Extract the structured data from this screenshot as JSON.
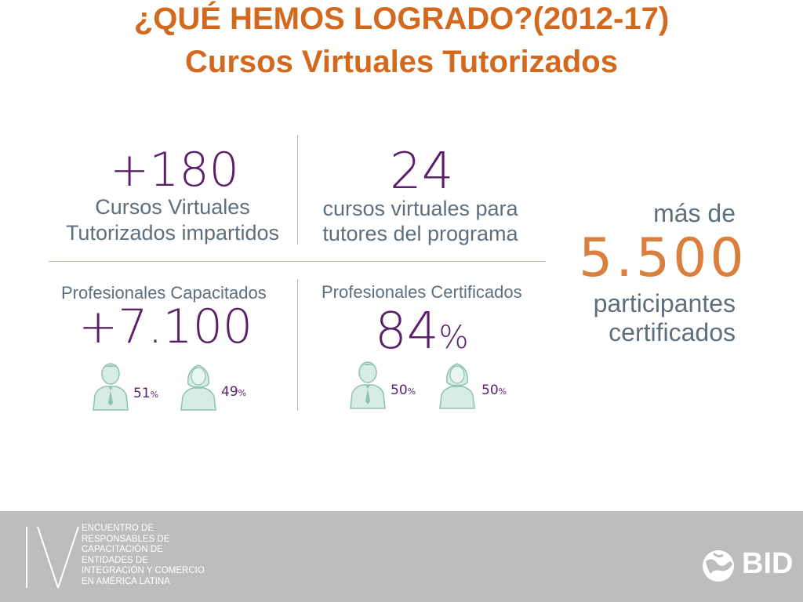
{
  "title": {
    "line1": "¿QUÉ HEMOS LOGRADO?(2012-17)",
    "line2": "Cursos Virtuales Tutorizados"
  },
  "stats": {
    "courses": {
      "value": "+180",
      "label_line1": "Cursos Virtuales",
      "label_line2": "Tutorizados impartidos"
    },
    "tutor_courses": {
      "value": "24",
      "label_line1": "cursos virtuales para",
      "label_line2": "tutores del programa"
    },
    "trained": {
      "label": "Profesionales Capacitados",
      "value": "+7.100",
      "male_pct": "51",
      "female_pct": "49",
      "pct_sign": "%"
    },
    "certified": {
      "label": "Profesionales Certificados",
      "value": "84",
      "pct_sign": "%",
      "male_pct": "50",
      "female_pct": "50"
    },
    "participants": {
      "prefix": "más de",
      "value": "5.500",
      "line1": "participantes",
      "line2": "certificados"
    }
  },
  "footer": {
    "roman": "IV",
    "lines": [
      "ENCUENTRO DE",
      "RESPONSABLES DE",
      "CAPACITACIÓN DE",
      "ENTIDADES DE",
      "INTEGRACIÓN Y COMERCIO",
      "EN AMÉRICA LATINA"
    ],
    "logo_text": "BID"
  },
  "colors": {
    "title": "#d2691e",
    "purple": "#5b1f6b",
    "slate": "#5d6f7d",
    "orange": "#d9803e",
    "icon_fill": "#d6ece5",
    "icon_stroke": "#8fc1b3",
    "footer_bg": "#bdbdbd"
  }
}
